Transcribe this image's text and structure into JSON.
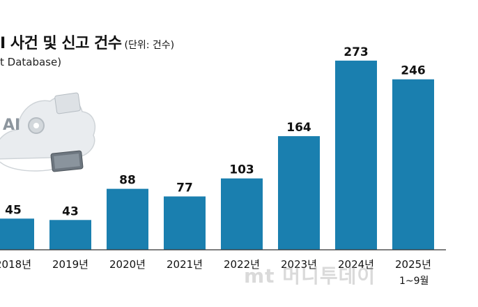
{
  "title": {
    "main": "I 사건 및 신고 건수",
    "unit": "(단위: 건수)",
    "source": "t Database)"
  },
  "footnote": "1~9월",
  "watermark": "mt 머니투데이",
  "colors": {
    "bar": "#1a7faf",
    "axis": "#333333"
  },
  "illustration": {
    "label": "AI",
    "icon": "ai-cloud-gear-icon"
  },
  "chart_data": {
    "type": "bar",
    "title": "I 사건 및 신고 건수",
    "unit": "(단위: 건수)",
    "categories": [
      "2018년",
      "2019년",
      "2020년",
      "2021년",
      "2022년",
      "2023년",
      "2024년",
      "2025년"
    ],
    "values": [
      45,
      43,
      88,
      77,
      103,
      164,
      273,
      246
    ],
    "ylim": [
      0,
      290
    ],
    "grid": false,
    "legend": "none"
  }
}
